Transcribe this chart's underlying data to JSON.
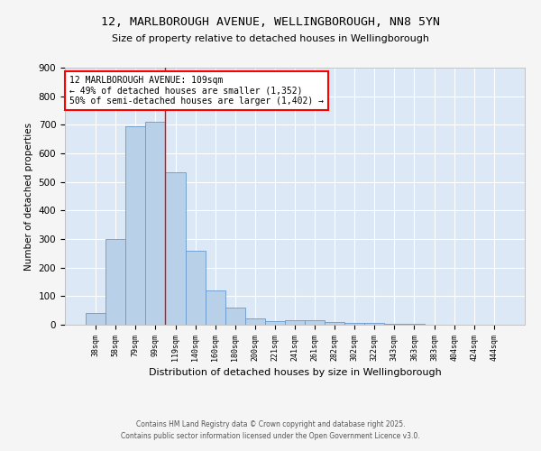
{
  "title_line1": "12, MARLBOROUGH AVENUE, WELLINGBOROUGH, NN8 5YN",
  "title_line2": "Size of property relative to detached houses in Wellingborough",
  "xlabel": "Distribution of detached houses by size in Wellingborough",
  "ylabel": "Number of detached properties",
  "categories": [
    "38sqm",
    "58sqm",
    "79sqm",
    "99sqm",
    "119sqm",
    "140sqm",
    "160sqm",
    "180sqm",
    "200sqm",
    "221sqm",
    "241sqm",
    "261sqm",
    "282sqm",
    "302sqm",
    "322sqm",
    "343sqm",
    "363sqm",
    "383sqm",
    "404sqm",
    "424sqm",
    "444sqm"
  ],
  "values": [
    40,
    300,
    695,
    710,
    535,
    260,
    120,
    60,
    22,
    12,
    15,
    15,
    8,
    5,
    5,
    3,
    2,
    1,
    1,
    1,
    1
  ],
  "bar_color": "#b8d0e8",
  "bar_edge_color": "#6699cc",
  "background_color": "#dce8f5",
  "fig_background": "#f5f5f5",
  "annotation_line1": "12 MARLBOROUGH AVENUE: 109sqm",
  "annotation_line2": "← 49% of detached houses are smaller (1,352)",
  "annotation_line3": "50% of semi-detached houses are larger (1,402) →",
  "vline_x": 3.5,
  "ylim": [
    0,
    900
  ],
  "yticks": [
    0,
    100,
    200,
    300,
    400,
    500,
    600,
    700,
    800,
    900
  ],
  "footer_line1": "Contains HM Land Registry data © Crown copyright and database right 2025.",
  "footer_line2": "Contains public sector information licensed under the Open Government Licence v3.0."
}
